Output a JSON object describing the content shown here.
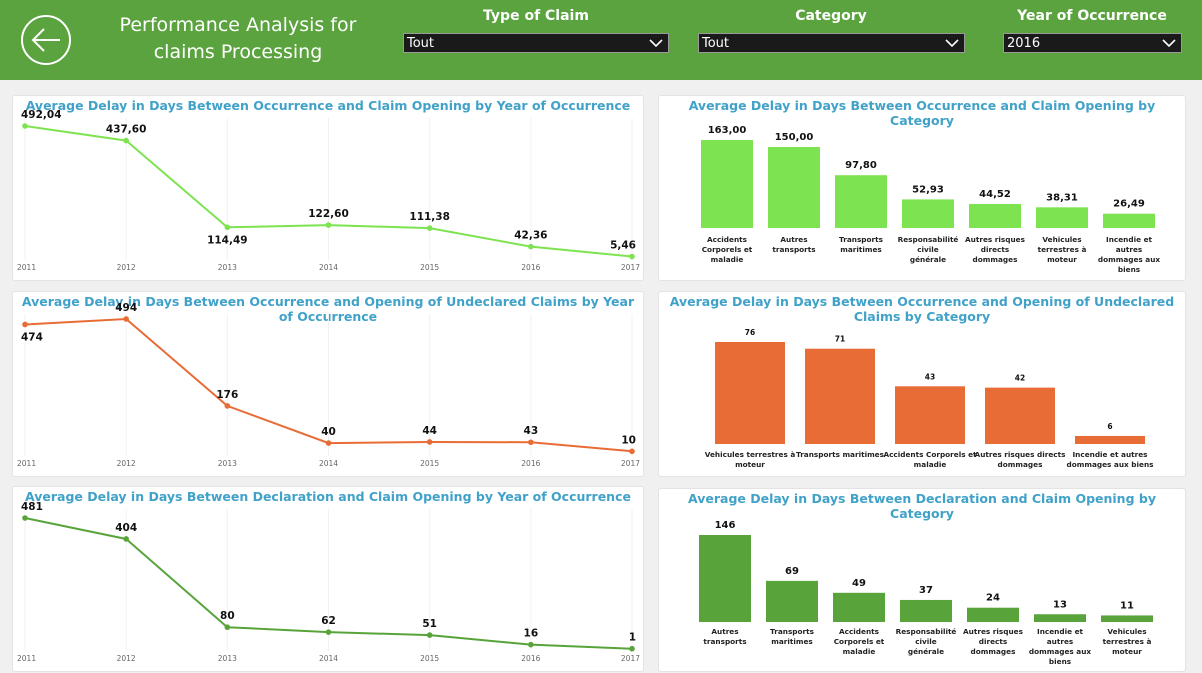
{
  "header": {
    "title": "Performance Analysis for claims Processing",
    "background_color": "#5aa33e",
    "back_icon": "arrow-left-circle-icon",
    "filters": [
      {
        "label": "Type of Claim",
        "value": "Tout"
      },
      {
        "label": "Category",
        "value": "Tout"
      },
      {
        "label": "Year of Occurrence",
        "value": "2016"
      }
    ]
  },
  "chart_data": [
    {
      "id": "line1",
      "type": "line",
      "title": "Average Delay in Days Between Occurrence and Claim Opening by Year of Occurrence",
      "x": [
        "2011",
        "2012",
        "2013",
        "2014",
        "2015",
        "2016",
        "2017"
      ],
      "values": [
        492.04,
        437.6,
        114.49,
        122.6,
        111.38,
        42.36,
        5.46
      ],
      "labels": [
        "492,04",
        "437,60",
        "114,49",
        "122,60",
        "111,38",
        "42,36",
        "5,46"
      ],
      "color": "#7ee350"
    },
    {
      "id": "bar1",
      "type": "bar",
      "title": "Average Delay in Days Between Occurrence and Claim Opening by Category",
      "categories": [
        "Accidents Corporels et maladie",
        "Autres transports",
        "Transports maritimes",
        "Responsabilité civile générale",
        "Autres risques directs dommages",
        "Vehicules terrestres à moteur",
        "Incendie et autres dommages aux biens"
      ],
      "values": [
        163.0,
        150.0,
        97.8,
        52.93,
        44.52,
        38.31,
        26.49
      ],
      "labels": [
        "163,00",
        "150,00",
        "97,80",
        "52,93",
        "44,52",
        "38,31",
        "26,49"
      ],
      "color": "#7ee350"
    },
    {
      "id": "line2",
      "type": "line",
      "title": "Average Delay in Days Between Occurrence and Opening of Undeclared Claims by Year of Occurrence",
      "x": [
        "2011",
        "2012",
        "2013",
        "2014",
        "2015",
        "2016",
        "2017"
      ],
      "values": [
        474,
        494,
        176,
        40,
        44,
        43,
        10
      ],
      "labels": [
        "474",
        "494",
        "176",
        "40",
        "44",
        "43",
        "10"
      ],
      "color": "#e86c35"
    },
    {
      "id": "bar2",
      "type": "bar",
      "title": "Average Delay in Days Between Occurrence and Opening of Undeclared Claims by Category",
      "categories": [
        "Vehicules terrestres à moteur",
        "Transports maritimes",
        "Accidents Corporels et maladie",
        "Autres risques directs dommages",
        "Incendie et autres dommages aux biens"
      ],
      "values": [
        76,
        71,
        43,
        42,
        6
      ],
      "labels": [
        "76",
        "71",
        "43",
        "42",
        "6"
      ],
      "color": "#e86c35"
    },
    {
      "id": "line3",
      "type": "line",
      "title": "Average Delay in Days Between Declaration and Claim Opening by Year of Occurrence",
      "x": [
        "2011",
        "2012",
        "2013",
        "2014",
        "2015",
        "2016",
        "2017"
      ],
      "values": [
        481,
        404,
        80,
        62,
        51,
        16,
        1
      ],
      "labels": [
        "481",
        "404",
        "80",
        "62",
        "51",
        "16",
        "1"
      ],
      "color": "#58a43a"
    },
    {
      "id": "bar3",
      "type": "bar",
      "title": "Average Delay in Days Between Declaration and Claim Opening by Category",
      "categories": [
        "Autres transports",
        "Transports maritimes",
        "Accidents Corporels et maladie",
        "Responsabilité civile générale",
        "Autres risques directs dommages",
        "Incendie et autres dommages aux biens",
        "Vehicules terrestres à moteur"
      ],
      "values": [
        146,
        69,
        49,
        37,
        24,
        13,
        11
      ],
      "labels": [
        "146",
        "69",
        "49",
        "37",
        "24",
        "13",
        "11"
      ],
      "color": "#58a43a"
    }
  ]
}
